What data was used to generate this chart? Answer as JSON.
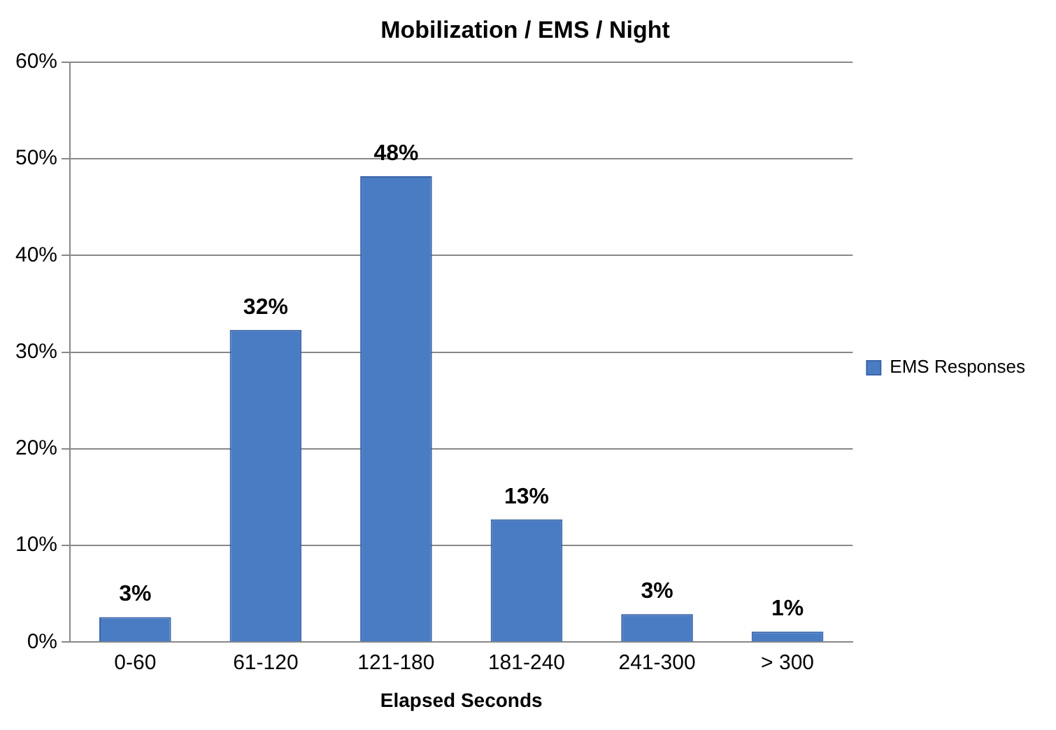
{
  "chart_data": {
    "type": "bar",
    "title": "Mobilization / EMS / Night",
    "xlabel": "Elapsed Seconds",
    "categories": [
      "0-60",
      "61-120",
      "121-180",
      "181-240",
      "241-300",
      "> 300"
    ],
    "series": [
      {
        "name": "EMS Responses",
        "color": "#4a7cc4",
        "values": [
          2.6,
          32.3,
          48.2,
          12.7,
          2.9,
          1.1
        ],
        "value_labels": [
          "3%",
          "32%",
          "48%",
          "13%",
          "3%",
          "1%"
        ]
      }
    ],
    "ylim": [
      0,
      60
    ],
    "yticks": [
      {
        "value": 0,
        "label": "0%"
      },
      {
        "value": 10,
        "label": "10%"
      },
      {
        "value": 20,
        "label": "20%"
      },
      {
        "value": 30,
        "label": "30%"
      },
      {
        "value": 40,
        "label": "40%"
      },
      {
        "value": 50,
        "label": "50%"
      },
      {
        "value": 60,
        "label": "60%"
      }
    ],
    "grid": "y",
    "legend": "right"
  }
}
